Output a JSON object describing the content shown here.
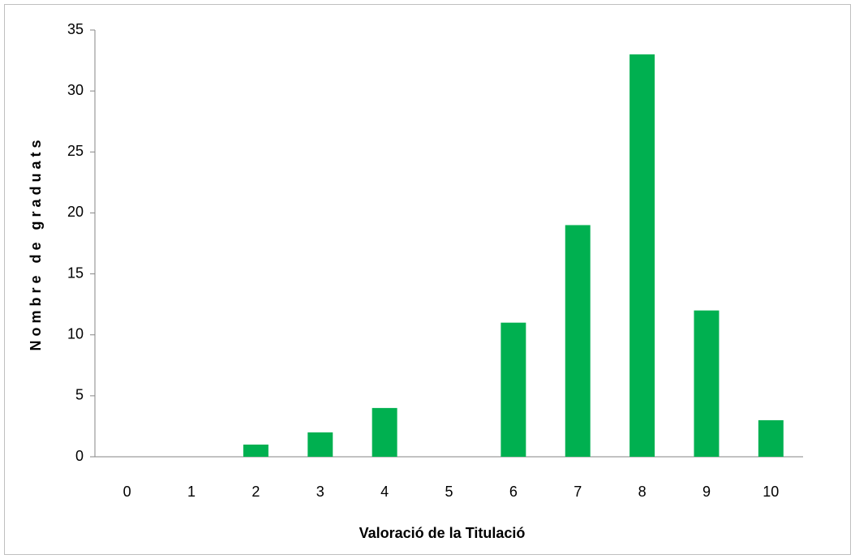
{
  "chart_data": {
    "type": "bar",
    "x_label": "Valoració de la Titulació",
    "y_label": "Nombre de graduats",
    "categories": [
      "0",
      "1",
      "2",
      "3",
      "4",
      "5",
      "6",
      "7",
      "8",
      "9",
      "10"
    ],
    "values": [
      0,
      0,
      1,
      2,
      4,
      0,
      11,
      19,
      33,
      12,
      3
    ],
    "color": "#00b050",
    "ylim": [
      0,
      35
    ],
    "yticks": [
      0,
      5,
      10,
      15,
      20,
      25,
      30,
      35
    ],
    "grid": false
  }
}
